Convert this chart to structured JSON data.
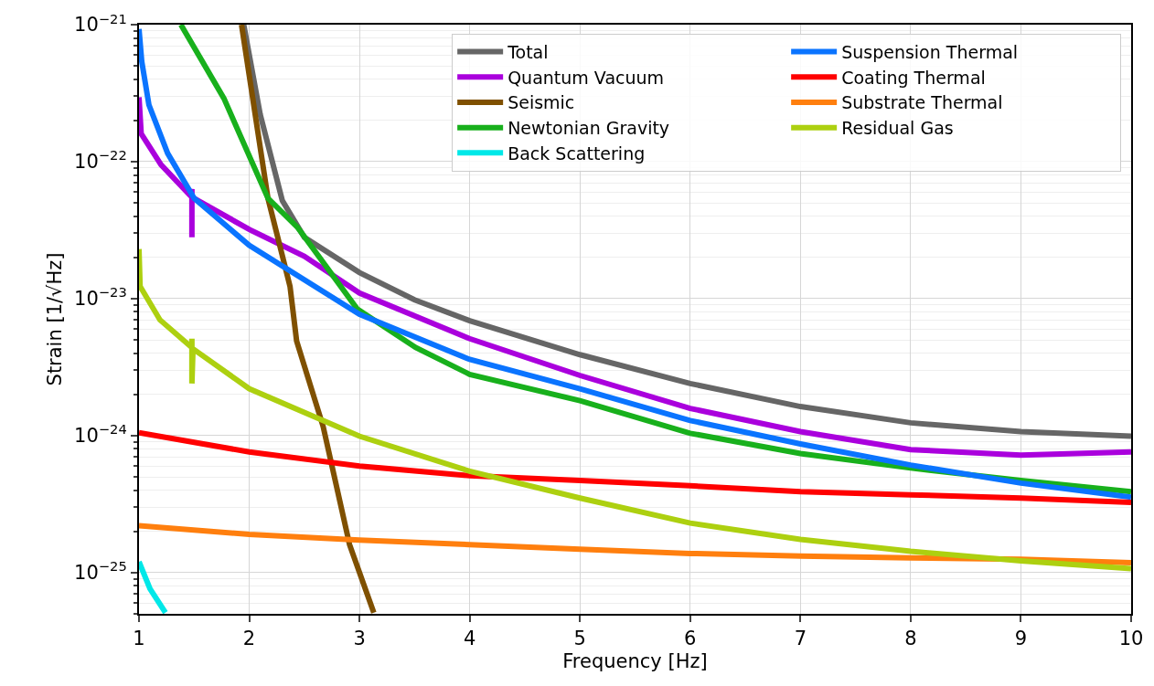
{
  "chart_data": {
    "type": "line",
    "xlabel": "Frequency [Hz]",
    "ylabel": "Strain [1/√Hz]",
    "log": "y",
    "grid": true,
    "legend": "top right",
    "marker": "none",
    "line_style": "solid",
    "xlim": [
      1,
      10
    ],
    "xticks": [
      1,
      2,
      3,
      4,
      5,
      6,
      7,
      8,
      9,
      10
    ],
    "ylim": [
      5e-26,
      1e-21
    ],
    "yticks": [
      {
        "value": 1e-21,
        "label": "10$^{−21}$"
      },
      {
        "value": 1e-22,
        "label": "10$^{−22}$"
      },
      {
        "value": 1e-23,
        "label": "10$^{−23}$"
      },
      {
        "value": 1e-24,
        "label": "10$^{−24}$"
      },
      {
        "value": 1e-25,
        "label": "10$^{−25}$"
      }
    ],
    "series": [
      {
        "name": "Total",
        "color": "#666666",
        "x": [
          1.95,
          2.1,
          2.3,
          2.5,
          3,
          3.5,
          4,
          5,
          6,
          7,
          8,
          9,
          10
        ],
        "values": [
          1e-21,
          2.2e-22,
          5.2e-23,
          2.8e-23,
          1.55e-23,
          9.8e-24,
          6.9e-24,
          3.9e-24,
          2.4e-24,
          1.63e-24,
          1.24e-24,
          1.07e-24,
          9.9e-25
        ]
      },
      {
        "name": "Quantum Vacuum",
        "color": "#aa00dd",
        "x": [
          1,
          1.02,
          1.2,
          1.47,
          1.48,
          1.48,
          1.48,
          1.5,
          2,
          2.5,
          3,
          4,
          5,
          6,
          7,
          8,
          9,
          10
        ],
        "values": [
          2.95e-22,
          1.6e-22,
          9.5e-23,
          5.6e-23,
          6.3e-23,
          2.8e-23,
          5.5e-23,
          5.4e-23,
          3.2e-23,
          2.04e-23,
          1.1e-23,
          5.1e-24,
          2.75e-24,
          1.58e-24,
          1.07e-24,
          7.9e-25,
          7.2e-25,
          7.6e-25
        ]
      },
      {
        "name": "Seismic",
        "color": "#7f5000",
        "x": [
          1.93,
          2.17,
          2.37,
          2.43,
          2.67,
          2.91,
          3.13
        ],
        "values": [
          1e-21,
          5.4e-23,
          1.23e-23,
          4.9e-24,
          1.17e-24,
          1.6e-25,
          5.1e-26
        ]
      },
      {
        "name": "Newtonian Gravity",
        "color": "#18b01c",
        "x": [
          1.38,
          1.77,
          2.17,
          2.44,
          2.98,
          3.51,
          4,
          5,
          6,
          7,
          8,
          9,
          10
        ],
        "values": [
          1e-21,
          2.9e-22,
          5.4e-23,
          3.3e-23,
          8.4e-24,
          4.4e-24,
          2.8e-24,
          1.8e-24,
          1.04e-24,
          7.4e-25,
          5.8e-25,
          4.7e-25,
          3.9e-25
        ]
      },
      {
        "name": "Back Scattering",
        "color": "#00e8e8",
        "x": [
          1,
          1.1,
          1.24
        ],
        "values": [
          1.2e-25,
          7.6e-26,
          5.1e-26
        ]
      },
      {
        "name": "Suspension Thermal",
        "color": "#0a74ff",
        "x": [
          1,
          1.025,
          1.09,
          1.26,
          1.5,
          2,
          3,
          4,
          5,
          6,
          7,
          8,
          9,
          10
        ],
        "values": [
          9.3e-22,
          5.4e-22,
          2.6e-22,
          1.15e-22,
          5.4e-23,
          2.45e-23,
          7.7e-24,
          3.6e-24,
          2.2e-24,
          1.29e-24,
          8.7e-25,
          6.1e-25,
          4.5e-25,
          3.55e-25
        ]
      },
      {
        "name": "Coating Thermal",
        "color": "#ff0000",
        "x": [
          1,
          2,
          3,
          4,
          5,
          6,
          7,
          8,
          9,
          10
        ],
        "values": [
          1.05e-24,
          7.6e-25,
          6e-25,
          5.1e-25,
          4.7e-25,
          4.3e-25,
          3.9e-25,
          3.7e-25,
          3.5e-25,
          3.25e-25
        ]
      },
      {
        "name": "Substrate Thermal",
        "color": "#ff7f0e",
        "x": [
          1,
          2,
          3,
          4,
          5,
          6,
          7,
          8,
          9,
          10
        ],
        "values": [
          2.2e-25,
          1.9e-25,
          1.73e-25,
          1.6e-25,
          1.48e-25,
          1.38e-25,
          1.32e-25,
          1.28e-25,
          1.25e-25,
          1.18e-25
        ]
      },
      {
        "name": "Residual Gas",
        "color": "#add010",
        "x": [
          1,
          1.01,
          1.19,
          1.48,
          1.48,
          1.48,
          1.49,
          2,
          3,
          4,
          5,
          6,
          7,
          8,
          9,
          10
        ],
        "values": [
          2.3e-23,
          1.23e-23,
          7e-24,
          4.4e-24,
          5.1e-24,
          2.4e-24,
          4.3e-24,
          2.2e-24,
          9.9e-25,
          5.5e-25,
          3.5e-25,
          2.3e-25,
          1.75e-25,
          1.43e-25,
          1.22e-25,
          1.07e-25
        ]
      }
    ]
  }
}
